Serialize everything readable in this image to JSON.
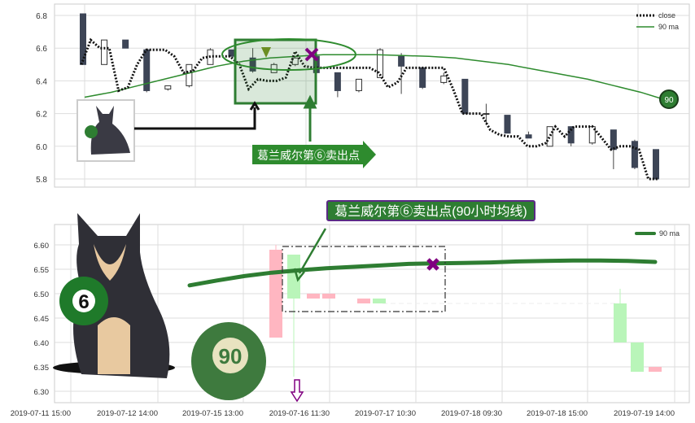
{
  "chart_data": [
    {
      "type": "line",
      "ylim": [
        5.75,
        6.85
      ],
      "yticks": [
        "6.8",
        "6.6",
        "6.4",
        "6.2",
        "6.0",
        "5.8"
      ],
      "grid": true,
      "legend_position": "top-right",
      "series": [
        {
          "name": "close",
          "style": "dotted",
          "color": "#111111",
          "values": [
            6.5,
            6.65,
            6.6,
            6.6,
            6.34,
            6.36,
            6.5,
            6.59,
            6.59,
            6.59,
            6.55,
            6.45,
            6.46,
            6.54,
            6.55,
            6.55,
            6.55,
            6.5,
            6.35,
            6.41,
            6.4,
            6.4,
            6.42,
            6.58,
            6.49,
            6.48,
            6.48,
            6.48,
            6.48,
            6.48,
            6.48,
            6.48,
            6.45,
            6.36,
            6.39,
            6.48,
            6.48,
            6.48,
            6.48,
            6.48,
            6.35,
            6.2,
            6.2,
            6.2,
            6.1,
            6.07,
            6.06,
            6.06,
            6.0,
            6.0,
            6.02,
            6.12,
            6.06,
            6.12,
            6.12,
            6.12,
            6.05,
            5.98,
            6.0,
            6.0,
            5.98,
            5.8,
            5.8
          ]
        },
        {
          "name": "90 ma",
          "style": "solid",
          "color": "#2e8b2e",
          "values": [
            6.3,
            6.33,
            6.37,
            6.41,
            6.45,
            6.49,
            6.52,
            6.54,
            6.55,
            6.56,
            6.56,
            6.56,
            6.555,
            6.55,
            6.54,
            6.52,
            6.5,
            6.47,
            6.44,
            6.41,
            6.37,
            6.33,
            6.28
          ]
        }
      ],
      "candles": [
        {
          "open": 6.81,
          "close": 6.5,
          "high": 6.81,
          "low": 6.5
        },
        {
          "open": 6.5,
          "close": 6.65,
          "high": 6.65,
          "low": 6.5
        },
        {
          "open": 6.65,
          "close": 6.6,
          "high": 6.65,
          "low": 6.6
        },
        {
          "open": 6.59,
          "close": 6.34,
          "high": 6.59,
          "low": 6.33
        },
        {
          "open": 6.35,
          "close": 6.37,
          "high": 6.37,
          "low": 6.34
        },
        {
          "open": 6.37,
          "close": 6.5,
          "high": 6.5,
          "low": 6.36
        },
        {
          "open": 6.5,
          "close": 6.59,
          "high": 6.6,
          "low": 6.5
        },
        {
          "open": 6.59,
          "close": 6.55,
          "high": 6.59,
          "low": 6.55
        },
        {
          "open": 6.54,
          "close": 6.46,
          "high": 6.6,
          "low": 6.45
        },
        {
          "open": 6.45,
          "close": 6.5,
          "high": 6.51,
          "low": 6.45
        },
        {
          "open": 6.5,
          "close": 6.54,
          "high": 6.55,
          "low": 6.49
        },
        {
          "open": 6.55,
          "close": 6.45,
          "high": 6.55,
          "low": 6.44
        },
        {
          "open": 6.45,
          "close": 6.34,
          "high": 6.45,
          "low": 6.3
        },
        {
          "open": 6.34,
          "close": 6.41,
          "high": 6.41,
          "low": 6.33
        },
        {
          "open": 6.42,
          "close": 6.59,
          "high": 6.6,
          "low": 6.42
        },
        {
          "open": 6.55,
          "close": 6.49,
          "high": 6.57,
          "low": 6.32
        },
        {
          "open": 6.48,
          "close": 6.36,
          "high": 6.48,
          "low": 6.35
        },
        {
          "open": 6.39,
          "close": 6.43,
          "high": 6.45,
          "low": 6.38
        },
        {
          "open": 6.41,
          "close": 6.2,
          "high": 6.41,
          "low": 6.2
        },
        {
          "open": 6.2,
          "close": 6.2,
          "high": 6.26,
          "low": 6.13
        },
        {
          "open": 6.19,
          "close": 6.08,
          "high": 6.19,
          "low": 6.08
        },
        {
          "open": 6.07,
          "close": 6.05,
          "high": 6.09,
          "low": 6.05
        },
        {
          "open": 6.0,
          "close": 6.12,
          "high": 6.12,
          "low": 6.0
        },
        {
          "open": 6.12,
          "close": 6.02,
          "high": 6.12,
          "low": 6.0
        },
        {
          "open": 6.02,
          "close": 6.12,
          "high": 6.13,
          "low": 6.01
        },
        {
          "open": 6.1,
          "close": 5.98,
          "high": 6.1,
          "low": 5.86
        },
        {
          "open": 6.03,
          "close": 5.87,
          "high": 6.04,
          "low": 5.86
        },
        {
          "open": 5.98,
          "close": 5.8,
          "high": 5.98,
          "low": 5.8
        }
      ]
    },
    {
      "type": "line",
      "ylim": [
        6.28,
        6.645
      ],
      "yticks": [
        "6.60",
        "6.55",
        "6.50",
        "6.45",
        "6.40",
        "6.35",
        "6.30"
      ],
      "xticks": [
        "2019-07-11 15:00",
        "2019-07-12 14:00",
        "2019-07-15 13:00",
        "2019-07-16 11:30",
        "2019-07-17 10:30",
        "2019-07-18 09:30",
        "2019-07-18 15:00",
        "2019-07-19 14:00"
      ],
      "grid": true,
      "legend_position": "top-right",
      "series": [
        {
          "name": "90 ma",
          "color": "#2e7d32",
          "values": [
            6.517,
            6.527,
            6.536,
            6.543,
            6.548,
            6.552,
            6.555,
            6.558,
            6.561,
            6.562,
            6.563,
            6.564,
            6.566,
            6.567,
            6.568,
            6.568,
            6.567,
            6.565
          ]
        }
      ],
      "candles": [
        {
          "open": 6.59,
          "close": 6.41,
          "high": 6.6,
          "low": 6.41,
          "color": "#ffb6c1"
        },
        {
          "open": 6.49,
          "close": 6.58,
          "high": 6.58,
          "low": 6.33,
          "color": "#b9f5b9"
        },
        {
          "open": 6.5,
          "close": 6.49,
          "high": 6.5,
          "low": 6.49,
          "color": "#ffb6c1"
        },
        {
          "open": 6.5,
          "close": 6.49,
          "high": 6.5,
          "low": 6.49,
          "color": "#ffb6c1"
        },
        {
          "open": 6.49,
          "close": 6.48,
          "high": 6.49,
          "low": 6.48,
          "color": "#ffb6c1"
        },
        {
          "open": 6.48,
          "close": 6.49,
          "high": 6.49,
          "low": 6.48,
          "color": "#b9f5b9"
        },
        {
          "open": 6.4,
          "close": 6.48,
          "high": 6.51,
          "low": 6.4,
          "color": "#b9f5b9"
        },
        {
          "open": 6.34,
          "close": 6.4,
          "high": 6.4,
          "low": 6.34,
          "color": "#b9f5b9"
        },
        {
          "open": 6.35,
          "close": 6.34,
          "high": 6.35,
          "low": 6.34,
          "color": "#ffb6c1"
        }
      ]
    }
  ],
  "annotations": {
    "top_label": "葛兰威尔第⑥卖出点",
    "bottom_label": "葛兰威尔第⑥卖出点(90小时均线)",
    "ball_six": "6",
    "ball_ninety": "90",
    "marker_color": "#800080",
    "accent_color": "#2e7d32"
  }
}
